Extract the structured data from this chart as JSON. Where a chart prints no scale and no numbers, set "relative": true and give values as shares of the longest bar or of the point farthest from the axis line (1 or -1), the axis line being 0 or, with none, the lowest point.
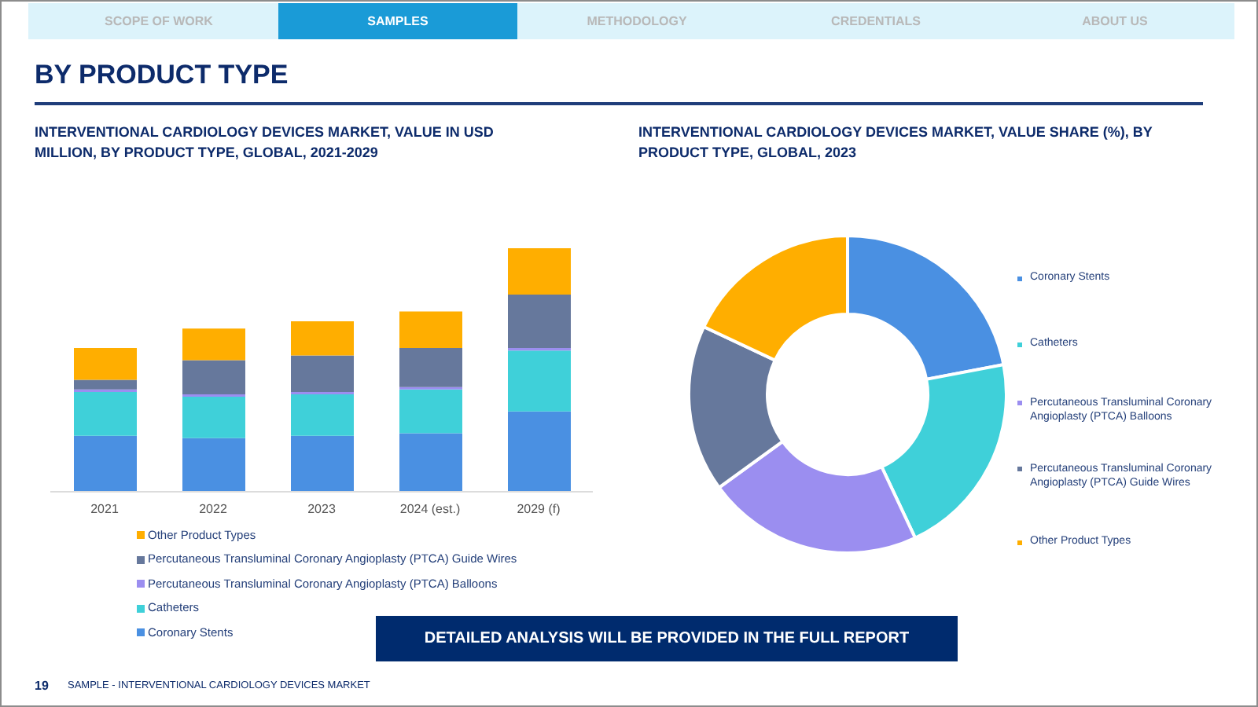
{
  "chart_data": [
    {
      "type": "other",
      "title": "BY PRODUCT TYPE",
      "annotations": [
        "SCOPE OF WORK",
        "SAMPLES",
        "METHODOLOGY",
        "CREDENTIALS",
        "ABOUT US"
      ]
    },
    {
      "type": "bar",
      "title": "INTERVENTIONAL CARDIOLOGY DEVICES MARKET, VALUE IN USD MILLION, BY PRODUCT TYPE, GLOBAL, 2021-2029",
      "categories": [
        "2021",
        "2022",
        "2023",
        "2024 (est.)",
        "2029 (f)"
      ],
      "stacked": true,
      "relative": true,
      "legend": "bottom",
      "series": [
        {
          "name": "Coronary Stents",
          "color": "#4a90e2",
          "values": [
            0.23,
            0.22,
            0.23,
            0.24,
            0.33
          ]
        },
        {
          "name": "Catheters",
          "color": "#3fd0d9",
          "values": [
            0.18,
            0.17,
            0.17,
            0.18,
            0.25
          ]
        },
        {
          "name": "Percutaneous Transluminal Coronary Angioplasty (PTCA) Balloons",
          "color": "#9b8ef0",
          "values": [
            0.01,
            0.01,
            0.01,
            0.01,
            0.01
          ]
        },
        {
          "name": "Percutaneous Transluminal Coronary Angioplasty (PTCA) Guide Wires",
          "color": "#66789c",
          "values": [
            0.04,
            0.14,
            0.15,
            0.16,
            0.22
          ]
        },
        {
          "name": "Other Product Types",
          "color": "#ffae00",
          "values": [
            0.13,
            0.13,
            0.14,
            0.15,
            0.19
          ]
        }
      ]
    },
    {
      "type": "donut",
      "title": "INTERVENTIONAL CARDIOLOGY DEVICES MARKET, VALUE SHARE (%), BY PRODUCT TYPE, GLOBAL, 2023",
      "categories": [
        "Coronary Stents",
        "Catheters",
        "Percutaneous Transluminal Coronary Angioplasty (PTCA) Balloons",
        "Percutaneous Transluminal Coronary Angioplasty (PTCA) Guide Wires",
        "Other Product Types"
      ],
      "values": [
        22,
        21,
        22,
        17,
        18
      ],
      "colors": [
        "#4a90e2",
        "#3fd0d9",
        "#9b8ef0",
        "#66789c",
        "#ffae00"
      ],
      "legend": "right"
    },
    {
      "type": "other",
      "annotations": [
        "DETAILED ANALYSIS WILL BE PROVIDED IN THE FULL REPORT",
        "19",
        "SAMPLE - INTERVENTIONAL CARDIOLOGY DEVICES MARKET"
      ]
    }
  ]
}
